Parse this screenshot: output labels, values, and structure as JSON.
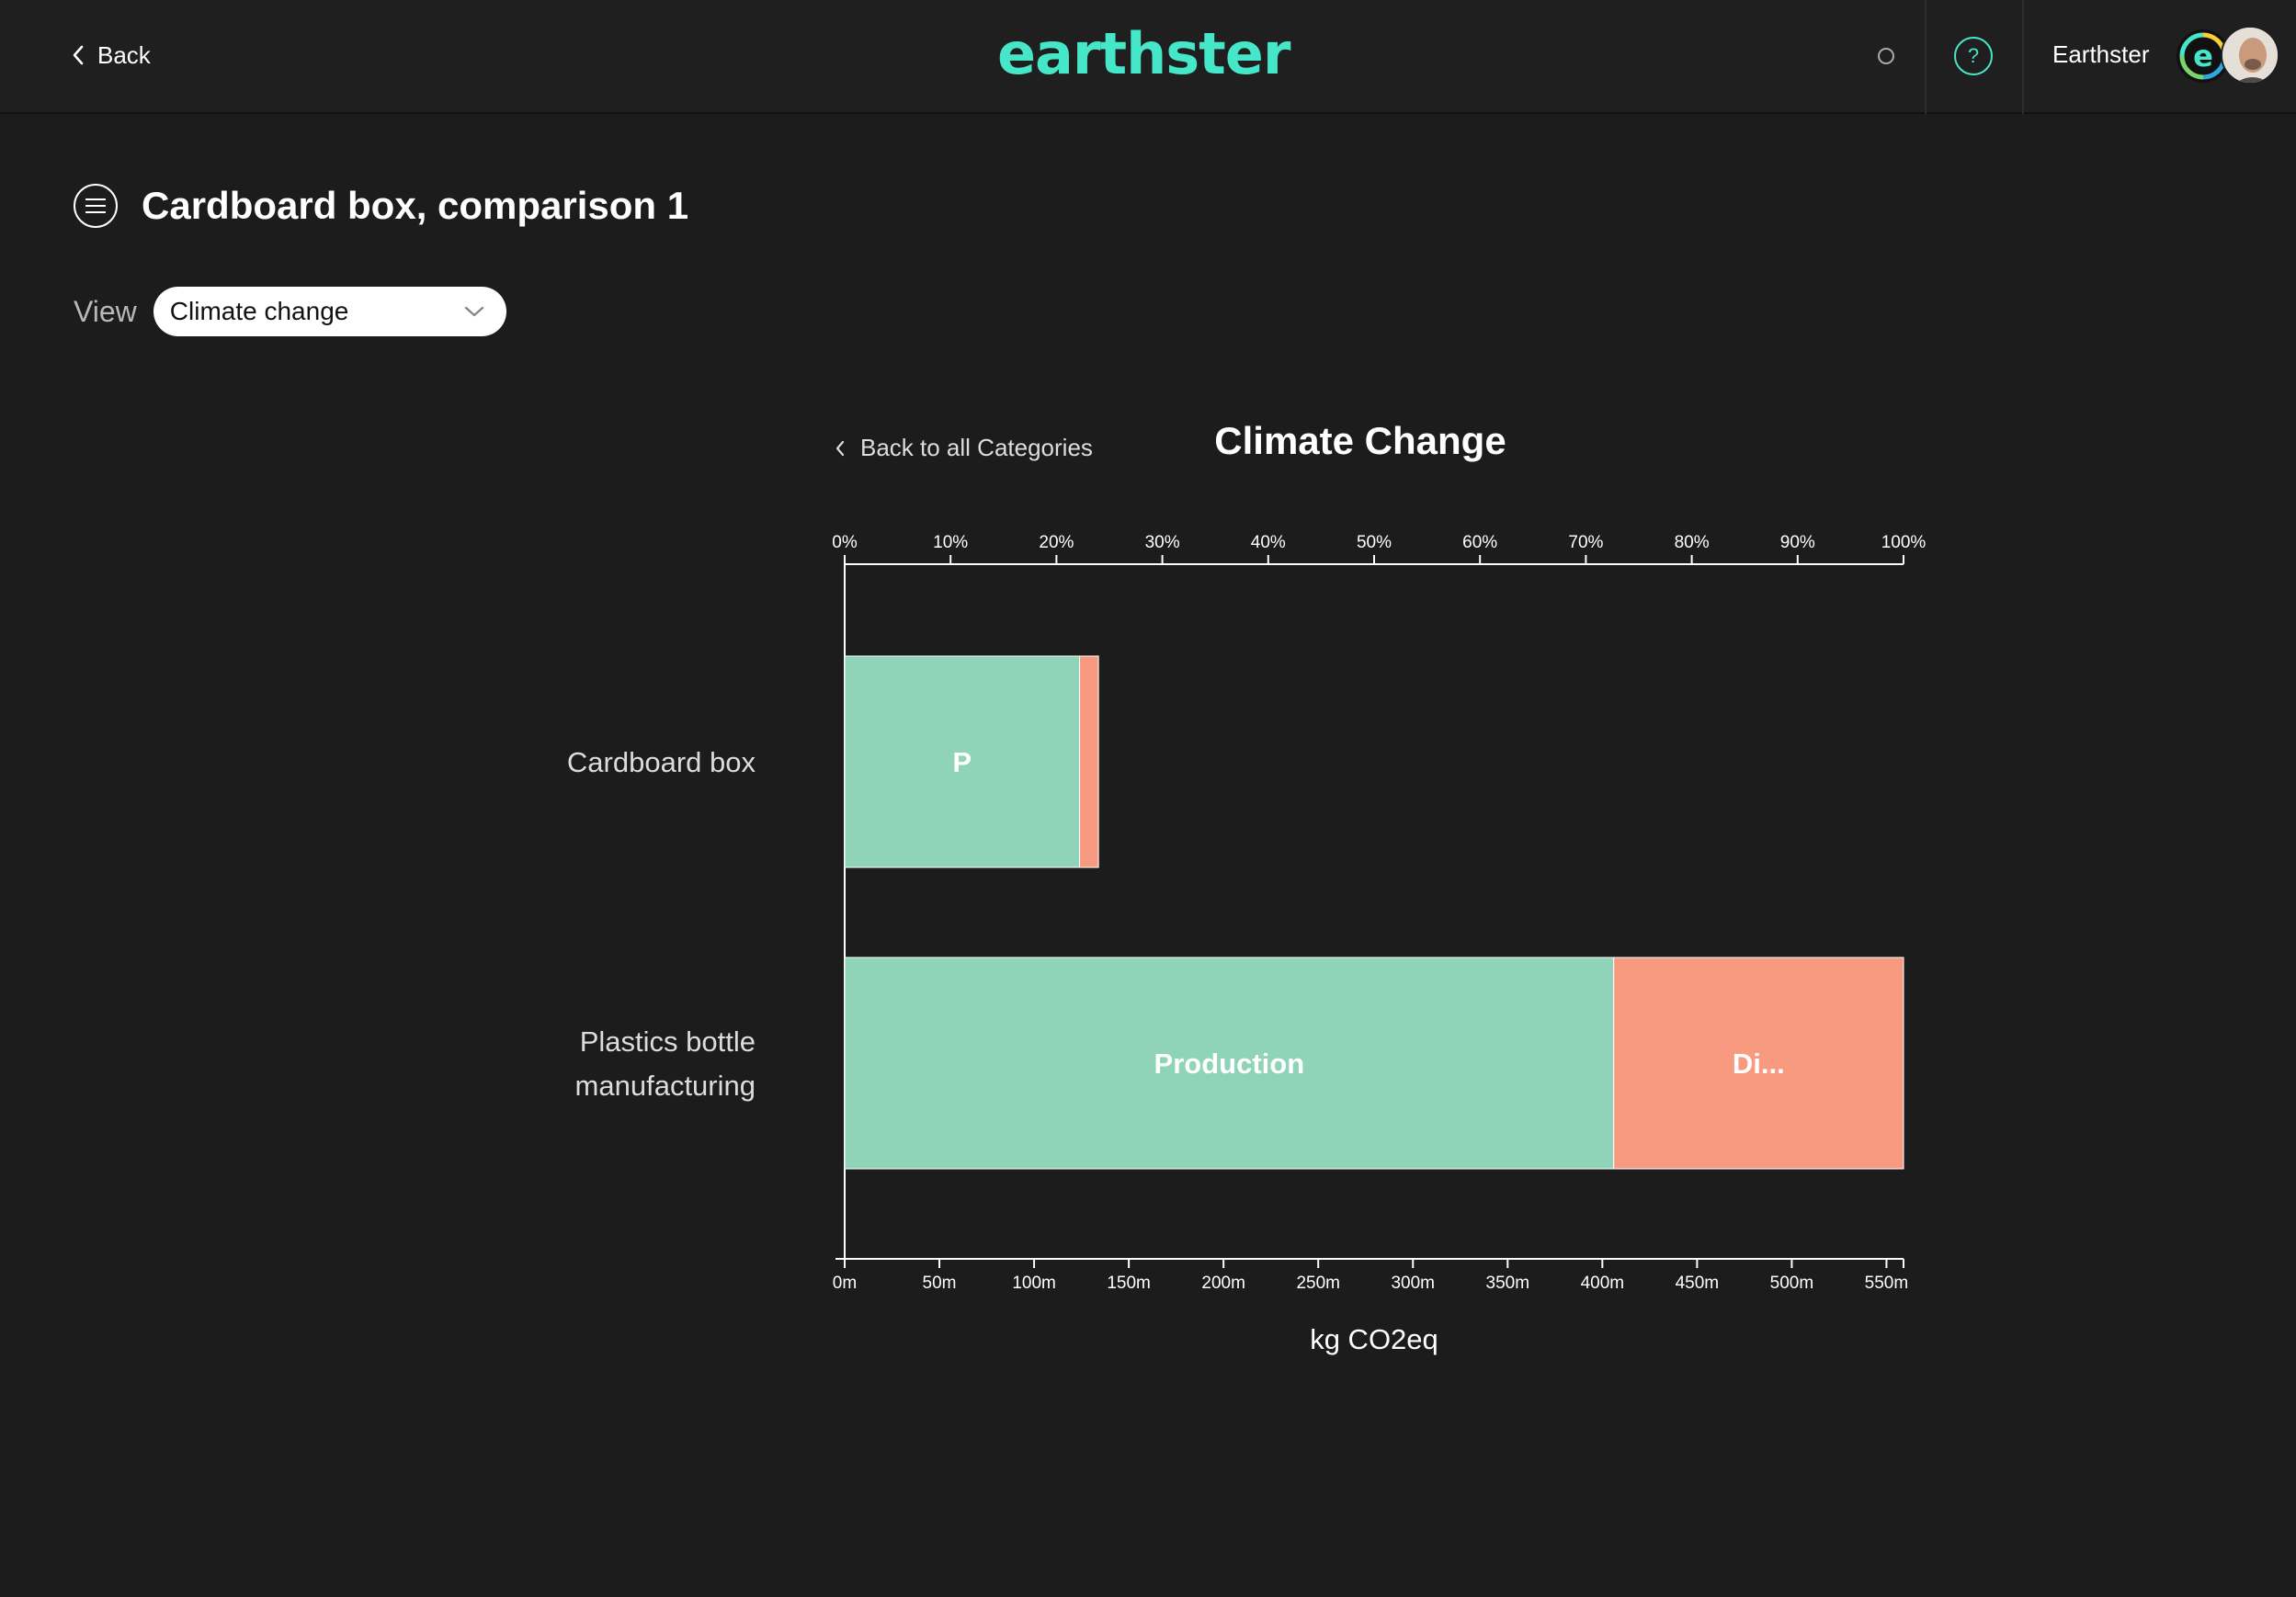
{
  "header": {
    "back_label": "Back",
    "logo_text": "earthster",
    "user_name": "Earthster",
    "help_glyph": "?",
    "icons": [
      "chevron-left-icon",
      "status-circle-icon",
      "help-icon",
      "org-logo-icon",
      "user-avatar"
    ]
  },
  "page": {
    "title": "Cardboard box, comparison 1",
    "view_label": "View",
    "view_selected": "Climate change"
  },
  "chart_header": {
    "back_label": "Back to all Categories",
    "title": "Climate Change"
  },
  "colors": {
    "background": "#1c1c1c",
    "accent": "#46e6c8",
    "production": "#8fd4b9",
    "disposal": "#f79a80"
  },
  "chart_data": {
    "type": "bar",
    "orientation": "horizontal",
    "stacked": true,
    "title": "Climate Change",
    "xlabel": "kg CO2eq",
    "ylabel": "",
    "categories": [
      "Cardboard box",
      "Plastics bottle manufacturing"
    ],
    "series": [
      {
        "values": [
          124,
          406
        ],
        "labels": [
          "P",
          "Production"
        ],
        "color": "#8fd4b9"
      },
      {
        "values": [
          10,
          153
        ],
        "labels": [
          "",
          "Di..."
        ],
        "color": "#f79a80"
      }
    ],
    "bottom_axis": {
      "ticks": [
        0,
        50,
        100,
        150,
        200,
        250,
        300,
        350,
        400,
        450,
        500,
        550
      ],
      "tick_labels": [
        "0m",
        "50m",
        "100m",
        "150m",
        "200m",
        "250m",
        "300m",
        "350m",
        "400m",
        "450m",
        "500m",
        "550m"
      ],
      "xlim": [
        0,
        559
      ]
    },
    "top_axis": {
      "ticks": [
        0,
        10,
        20,
        30,
        40,
        50,
        60,
        70,
        80,
        90,
        100
      ],
      "tick_labels": [
        "0%",
        "10%",
        "20%",
        "30%",
        "40%",
        "50%",
        "60%",
        "70%",
        "80%",
        "90%",
        "100%"
      ],
      "xlim": [
        0,
        100
      ]
    },
    "grid": false
  }
}
